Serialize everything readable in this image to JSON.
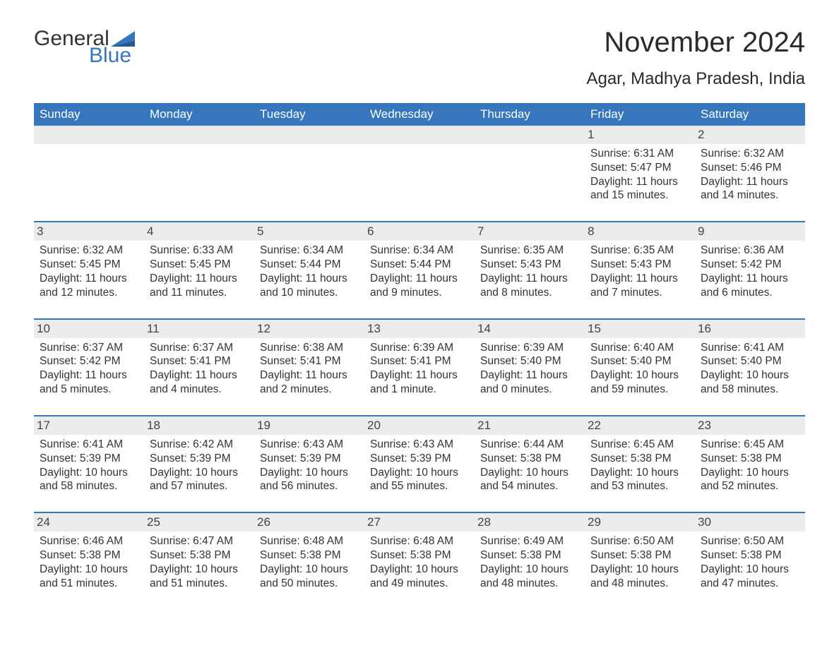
{
  "brand": {
    "word1": "General",
    "word2": "Blue",
    "accent_color": "#3676bd"
  },
  "title": "November 2024",
  "location": "Agar, Madhya Pradesh, India",
  "header_bg": "#3676bd",
  "header_fg": "#ffffff",
  "daynum_bg": "#ececec",
  "body_bg": "#ffffff",
  "text_color": "#333333",
  "font_family": "Arial, Helvetica, sans-serif",
  "title_fontsize": 40,
  "location_fontsize": 24,
  "dow_fontsize": 17,
  "body_fontsize": 15.5,
  "days_of_week": [
    "Sunday",
    "Monday",
    "Tuesday",
    "Wednesday",
    "Thursday",
    "Friday",
    "Saturday"
  ],
  "weeks": [
    [
      null,
      null,
      null,
      null,
      null,
      {
        "n": "1",
        "sr": "6:31 AM",
        "ss": "5:47 PM",
        "dl": "11 hours and 15 minutes."
      },
      {
        "n": "2",
        "sr": "6:32 AM",
        "ss": "5:46 PM",
        "dl": "11 hours and 14 minutes."
      }
    ],
    [
      {
        "n": "3",
        "sr": "6:32 AM",
        "ss": "5:45 PM",
        "dl": "11 hours and 12 minutes."
      },
      {
        "n": "4",
        "sr": "6:33 AM",
        "ss": "5:45 PM",
        "dl": "11 hours and 11 minutes."
      },
      {
        "n": "5",
        "sr": "6:34 AM",
        "ss": "5:44 PM",
        "dl": "11 hours and 10 minutes."
      },
      {
        "n": "6",
        "sr": "6:34 AM",
        "ss": "5:44 PM",
        "dl": "11 hours and 9 minutes."
      },
      {
        "n": "7",
        "sr": "6:35 AM",
        "ss": "5:43 PM",
        "dl": "11 hours and 8 minutes."
      },
      {
        "n": "8",
        "sr": "6:35 AM",
        "ss": "5:43 PM",
        "dl": "11 hours and 7 minutes."
      },
      {
        "n": "9",
        "sr": "6:36 AM",
        "ss": "5:42 PM",
        "dl": "11 hours and 6 minutes."
      }
    ],
    [
      {
        "n": "10",
        "sr": "6:37 AM",
        "ss": "5:42 PM",
        "dl": "11 hours and 5 minutes."
      },
      {
        "n": "11",
        "sr": "6:37 AM",
        "ss": "5:41 PM",
        "dl": "11 hours and 4 minutes."
      },
      {
        "n": "12",
        "sr": "6:38 AM",
        "ss": "5:41 PM",
        "dl": "11 hours and 2 minutes."
      },
      {
        "n": "13",
        "sr": "6:39 AM",
        "ss": "5:41 PM",
        "dl": "11 hours and 1 minute."
      },
      {
        "n": "14",
        "sr": "6:39 AM",
        "ss": "5:40 PM",
        "dl": "11 hours and 0 minutes."
      },
      {
        "n": "15",
        "sr": "6:40 AM",
        "ss": "5:40 PM",
        "dl": "10 hours and 59 minutes."
      },
      {
        "n": "16",
        "sr": "6:41 AM",
        "ss": "5:40 PM",
        "dl": "10 hours and 58 minutes."
      }
    ],
    [
      {
        "n": "17",
        "sr": "6:41 AM",
        "ss": "5:39 PM",
        "dl": "10 hours and 58 minutes."
      },
      {
        "n": "18",
        "sr": "6:42 AM",
        "ss": "5:39 PM",
        "dl": "10 hours and 57 minutes."
      },
      {
        "n": "19",
        "sr": "6:43 AM",
        "ss": "5:39 PM",
        "dl": "10 hours and 56 minutes."
      },
      {
        "n": "20",
        "sr": "6:43 AM",
        "ss": "5:39 PM",
        "dl": "10 hours and 55 minutes."
      },
      {
        "n": "21",
        "sr": "6:44 AM",
        "ss": "5:38 PM",
        "dl": "10 hours and 54 minutes."
      },
      {
        "n": "22",
        "sr": "6:45 AM",
        "ss": "5:38 PM",
        "dl": "10 hours and 53 minutes."
      },
      {
        "n": "23",
        "sr": "6:45 AM",
        "ss": "5:38 PM",
        "dl": "10 hours and 52 minutes."
      }
    ],
    [
      {
        "n": "24",
        "sr": "6:46 AM",
        "ss": "5:38 PM",
        "dl": "10 hours and 51 minutes."
      },
      {
        "n": "25",
        "sr": "6:47 AM",
        "ss": "5:38 PM",
        "dl": "10 hours and 51 minutes."
      },
      {
        "n": "26",
        "sr": "6:48 AM",
        "ss": "5:38 PM",
        "dl": "10 hours and 50 minutes."
      },
      {
        "n": "27",
        "sr": "6:48 AM",
        "ss": "5:38 PM",
        "dl": "10 hours and 49 minutes."
      },
      {
        "n": "28",
        "sr": "6:49 AM",
        "ss": "5:38 PM",
        "dl": "10 hours and 48 minutes."
      },
      {
        "n": "29",
        "sr": "6:50 AM",
        "ss": "5:38 PM",
        "dl": "10 hours and 48 minutes."
      },
      {
        "n": "30",
        "sr": "6:50 AM",
        "ss": "5:38 PM",
        "dl": "10 hours and 47 minutes."
      }
    ]
  ],
  "labels": {
    "sunrise": "Sunrise:",
    "sunset": "Sunset:",
    "daylight": "Daylight:"
  }
}
